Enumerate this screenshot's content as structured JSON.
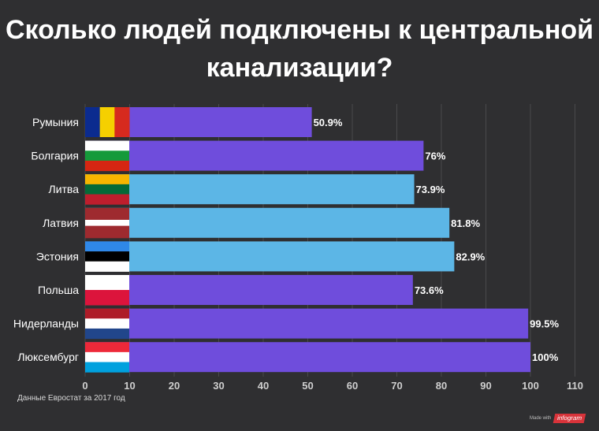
{
  "title_lines": [
    "Сколько людей подключены к центральной",
    "канализации?"
  ],
  "source": "Данные Евростат за 2017 год",
  "credit": {
    "made_with": "Made with",
    "brand": "infogram"
  },
  "colors": {
    "background": "#2f2f31",
    "purple": "#6f4ddc",
    "light_blue": "#5cb6e6",
    "grid": "#4a4a4c"
  },
  "chart_data": {
    "type": "bar",
    "orientation": "horizontal",
    "categories": [
      "Румыния",
      "Болгария",
      "Литва",
      "Латвия",
      "Эстония",
      "Польша",
      "Нидерланды",
      "Люксембург"
    ],
    "values": [
      50.9,
      76,
      73.9,
      81.8,
      82.9,
      73.6,
      99.5,
      100
    ],
    "value_labels": [
      "50.9%",
      "76%",
      "73.9%",
      "81.8%",
      "82.9%",
      "73.6%",
      "99.5%",
      "100%"
    ],
    "bar_colors": [
      "#6f4ddc",
      "#6f4ddc",
      "#5cb6e6",
      "#5cb6e6",
      "#5cb6e6",
      "#6f4ddc",
      "#6f4ddc",
      "#6f4ddc"
    ],
    "flags": [
      {
        "country": "Румыния",
        "stripes": "vertical",
        "colors": [
          "#0b2b8f",
          "#f5d000",
          "#d62a1e"
        ]
      },
      {
        "country": "Болгария",
        "stripes": "horizontal",
        "colors": [
          "#ffffff",
          "#159a3a",
          "#d62612"
        ]
      },
      {
        "country": "Литва",
        "stripes": "horizontal",
        "colors": [
          "#f7b500",
          "#046a38",
          "#be1e2d"
        ]
      },
      {
        "country": "Латвия",
        "stripes": "horizontal",
        "colors": [
          "#9e2a2f",
          "#ffffff",
          "#9e2a2f"
        ],
        "weights": [
          2,
          1,
          2
        ]
      },
      {
        "country": "Эстония",
        "stripes": "horizontal",
        "colors": [
          "#2f88e8",
          "#000000",
          "#ffffff"
        ]
      },
      {
        "country": "Польша",
        "stripes": "horizontal",
        "colors": [
          "#ffffff",
          "#dc143c"
        ]
      },
      {
        "country": "Нидерланды",
        "stripes": "horizontal",
        "colors": [
          "#ae1c28",
          "#ffffff",
          "#21468b"
        ]
      },
      {
        "country": "Люксембург",
        "stripes": "horizontal",
        "colors": [
          "#ed2939",
          "#ffffff",
          "#00a1de"
        ]
      }
    ],
    "x_ticks": [
      0,
      10,
      20,
      30,
      40,
      50,
      60,
      70,
      80,
      90,
      100,
      110
    ],
    "xlim": [
      0,
      110
    ],
    "grid": true
  }
}
